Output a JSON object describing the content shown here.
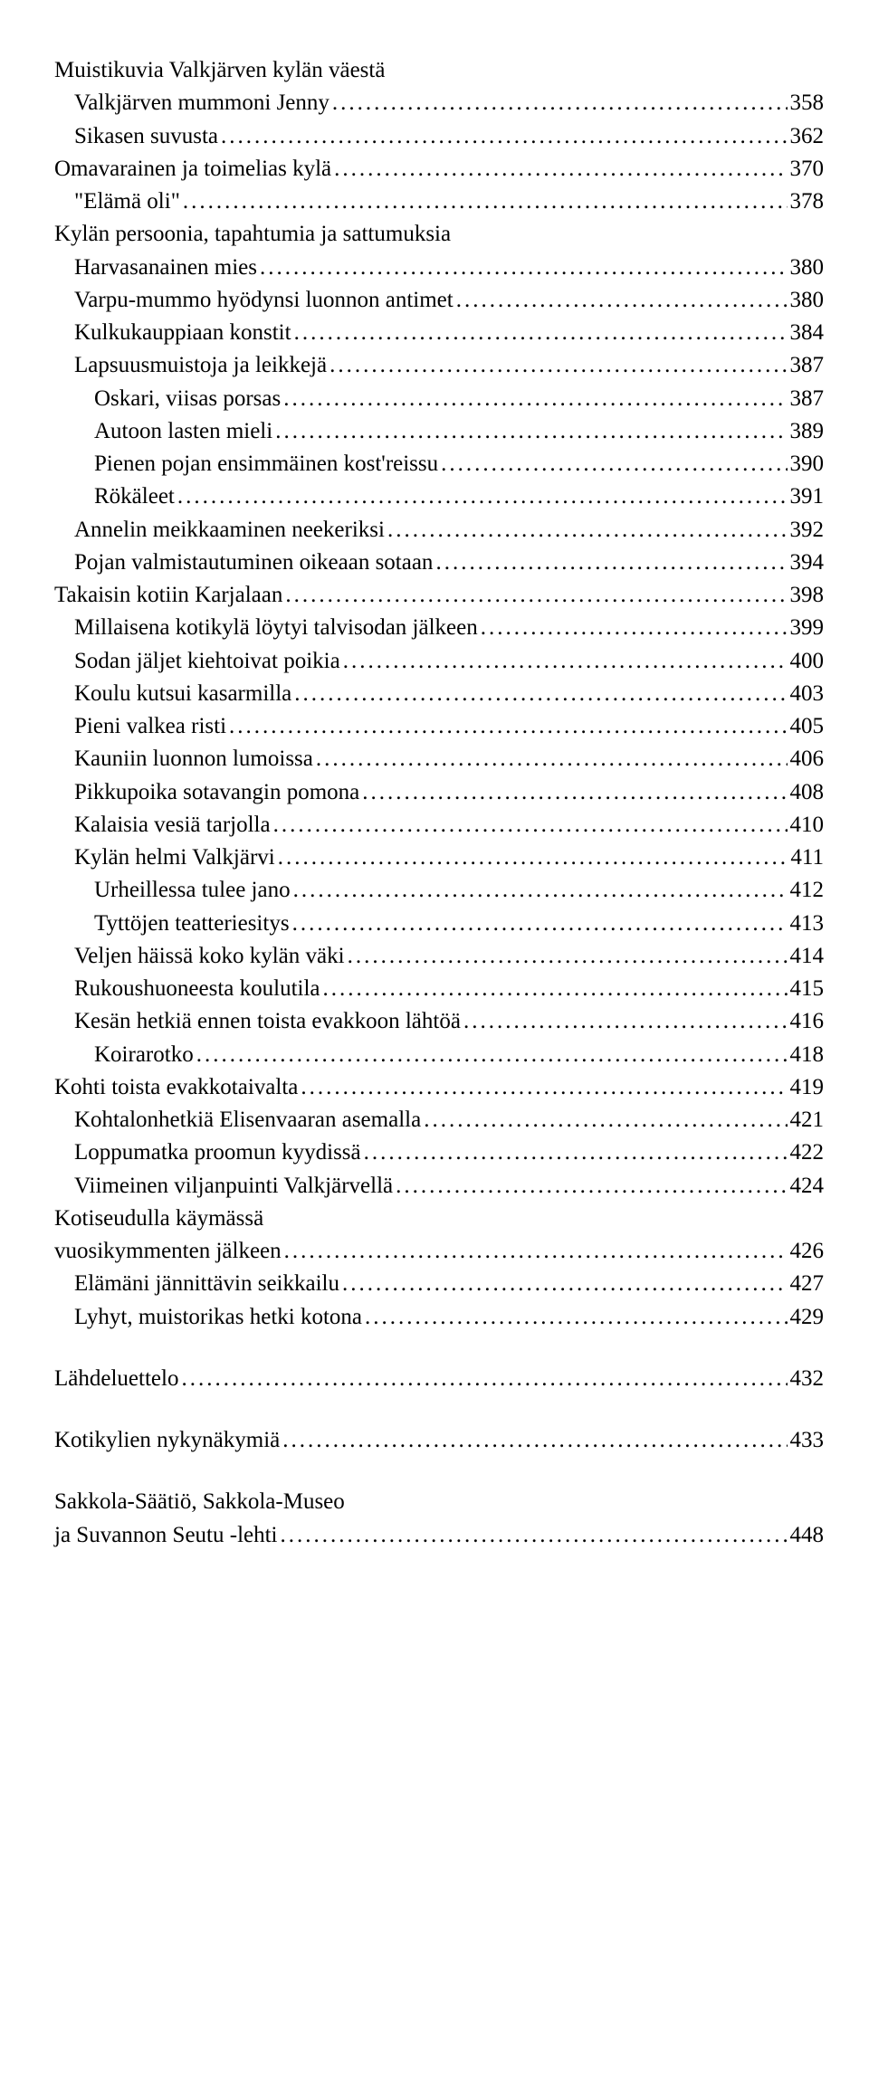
{
  "font_family": "Georgia, 'Times New Roman', serif",
  "font_size_pt": 19,
  "text_color": "#000000",
  "background_color": "#ffffff",
  "entries": [
    {
      "label": "Muistikuvia Valkjärven kylän väestä",
      "page": null,
      "indent": 0
    },
    {
      "label": "Valkjärven mummoni Jenny",
      "page": "358",
      "indent": 1
    },
    {
      "label": "Sikasen suvusta",
      "page": "362",
      "indent": 1
    },
    {
      "label": "Omavarainen ja toimelias kylä",
      "page": "370",
      "indent": 0
    },
    {
      "label": "\"Elämä oli\"",
      "page": "378",
      "indent": 1
    },
    {
      "label": "Kylän persoonia, tapahtumia ja sattumuksia",
      "page": null,
      "indent": 0
    },
    {
      "label": "Harvasanainen mies",
      "page": "380",
      "indent": 1
    },
    {
      "label": "Varpu-mummo hyödynsi luonnon antimet",
      "page": "380",
      "indent": 1
    },
    {
      "label": "Kulkukauppiaan konstit",
      "page": "384",
      "indent": 1
    },
    {
      "label": "Lapsuusmuistoja ja leikkejä",
      "page": "387",
      "indent": 1
    },
    {
      "label": "Oskari, viisas porsas",
      "page": "387",
      "indent": 2
    },
    {
      "label": "Autoon lasten mieli",
      "page": "389",
      "indent": 2
    },
    {
      "label": "Pienen pojan ensimmäinen kost'reissu",
      "page": "390",
      "indent": 2
    },
    {
      "label": "Rökäleet",
      "page": "391",
      "indent": 2
    },
    {
      "label": "Annelin meikkaaminen neekeriksi",
      "page": "392",
      "indent": 1
    },
    {
      "label": "Pojan valmistautuminen oikeaan sotaan",
      "page": "394",
      "indent": 1
    },
    {
      "label": "Takaisin kotiin Karjalaan",
      "page": "398",
      "indent": 0
    },
    {
      "label": "Millaisena kotikylä löytyi talvisodan jälkeen",
      "page": "399",
      "indent": 1
    },
    {
      "label": "Sodan jäljet kiehtoivat poikia",
      "page": "400",
      "indent": 1
    },
    {
      "label": "Koulu kutsui kasarmilla",
      "page": "403",
      "indent": 1
    },
    {
      "label": "Pieni valkea risti",
      "page": "405",
      "indent": 1
    },
    {
      "label": "Kauniin luonnon lumoissa",
      "page": "406",
      "indent": 1
    },
    {
      "label": "Pikkupoika sotavangin pomona",
      "page": "408",
      "indent": 1
    },
    {
      "label": "Kalaisia vesiä tarjolla",
      "page": "410",
      "indent": 1
    },
    {
      "label": "Kylän helmi Valkjärvi",
      "page": "411",
      "indent": 1
    },
    {
      "label": "Urheillessa tulee jano",
      "page": "412",
      "indent": 2
    },
    {
      "label": "Tyttöjen teatteriesitys",
      "page": "413",
      "indent": 2
    },
    {
      "label": "Veljen häissä koko kylän väki",
      "page": "414",
      "indent": 1
    },
    {
      "label": "Rukoushuoneesta koulutila",
      "page": "415",
      "indent": 1
    },
    {
      "label": "Kesän hetkiä ennen toista evakkoon lähtöä",
      "page": "416",
      "indent": 1
    },
    {
      "label": "Koirarotko",
      "page": "418",
      "indent": 2
    },
    {
      "label": "Kohti toista evakkotaivalta",
      "page": "419",
      "indent": 0
    },
    {
      "label": "Kohtalonhetkiä Elisenvaaran asemalla",
      "page": "421",
      "indent": 1
    },
    {
      "label": "Loppumatka proomun kyydissä",
      "page": "422",
      "indent": 1
    },
    {
      "label": "Viimeinen viljanpuinti Valkjärvellä",
      "page": "424",
      "indent": 1
    },
    {
      "label": "Kotiseudulla käymässä",
      "page": null,
      "indent": 0
    },
    {
      "label": "vuosikymmenten jälkeen",
      "page": "426",
      "indent": 0
    },
    {
      "label": "Elämäni jännittävin seikkailu",
      "page": "427",
      "indent": 1
    },
    {
      "label": "Lyhyt, muistorikas hetki kotona",
      "page": "429",
      "indent": 1
    },
    {
      "label": "__SPACER__",
      "page": null,
      "indent": 0
    },
    {
      "label": "Lähdeluettelo",
      "page": "432",
      "indent": 0
    },
    {
      "label": "__SPACER__",
      "page": null,
      "indent": 0
    },
    {
      "label": "Kotikylien nykynäkymiä",
      "page": "433",
      "indent": 0
    },
    {
      "label": "__SPACER__",
      "page": null,
      "indent": 0
    },
    {
      "label": "Sakkola-Säätiö, Sakkola-Museo",
      "page": null,
      "indent": 0
    },
    {
      "label": "ja Suvannon Seutu -lehti",
      "page": "448",
      "indent": 0
    }
  ]
}
